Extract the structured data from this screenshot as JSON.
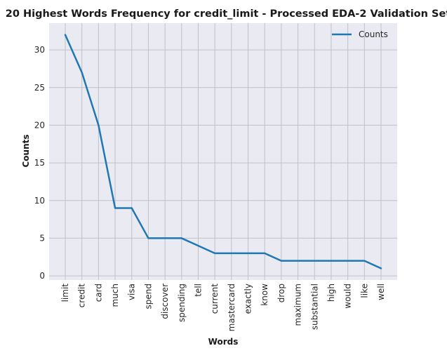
{
  "chart_data": {
    "type": "line",
    "title": "20 Highest Words Frequency for credit_limit - Processed EDA-2 Validation Set",
    "xlabel": "Words",
    "ylabel": "Counts",
    "categories": [
      "limit",
      "credit",
      "card",
      "much",
      "visa",
      "spend",
      "discover",
      "spending",
      "tell",
      "current",
      "mastercard",
      "exactly",
      "know",
      "drop",
      "maximum",
      "substantial",
      "high",
      "would",
      "like",
      "well"
    ],
    "series": [
      {
        "name": "Counts",
        "values": [
          32,
          27,
          20,
          9,
          9,
          5,
          5,
          5,
          4,
          3,
          3,
          3,
          3,
          2,
          2,
          2,
          2,
          2,
          2,
          1
        ],
        "color": "#1f77b4"
      }
    ],
    "yticks": [
      0,
      5,
      10,
      15,
      20,
      25,
      30
    ],
    "ylim": [
      -0.55,
      33.55
    ],
    "grid": true,
    "legend_position": "top-right",
    "background_color": "#eaeaf2",
    "grid_color": "#c0c0c8"
  }
}
